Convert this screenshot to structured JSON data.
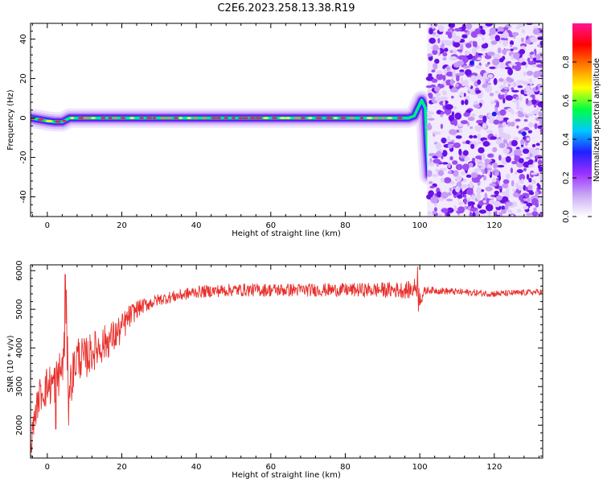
{
  "title": "C2E6.2023.258.13.38.R19",
  "chart_data": [
    {
      "type": "heatmap",
      "xlabel": "Height of straight line (km)",
      "ylabel": "Frequency (Hz)",
      "xlim": [
        -4.5,
        133
      ],
      "ylim": [
        -50,
        48
      ],
      "xticks": [
        0,
        20,
        40,
        60,
        80,
        100,
        120
      ],
      "yticks": [
        -40,
        -20,
        0,
        20,
        40
      ],
      "ridge": {
        "x": [
          -4.5,
          0,
          2,
          4,
          6,
          10,
          20,
          40,
          60,
          80,
          95,
          97,
          98.5,
          99.5,
          100.5,
          101.5,
          102,
          102.5
        ],
        "y": [
          0,
          -1.5,
          -2,
          -2,
          0,
          0,
          0,
          0,
          0,
          0,
          0,
          0,
          1,
          5,
          9,
          5,
          -15,
          -29
        ]
      },
      "noise_start_km": 103.5,
      "grid": false,
      "colorbar": {
        "label": "Normalized spectral amplitude",
        "range": [
          0.0,
          1.0
        ],
        "ticks": [
          "0.0",
          "0.2",
          "0.4",
          "0.6",
          "0.8"
        ],
        "colors": [
          "#ffffff",
          "#c9a8f5",
          "#9b30ff",
          "#2020ff",
          "#00c8ff",
          "#00ff40",
          "#ffff00",
          "#ff8000",
          "#ff0000",
          "#ff1493"
        ]
      }
    },
    {
      "type": "line",
      "xlabel": "Height of straight line (km)",
      "ylabel": "SNR (10 * v/v)",
      "xlim": [
        -4.5,
        133
      ],
      "ylim": [
        1150,
        6150
      ],
      "xticks": [
        0,
        20,
        40,
        60,
        80,
        100,
        120
      ],
      "yticks": [
        2000,
        3000,
        4000,
        5000,
        6000
      ],
      "grid": false,
      "line_color": "#e8302c",
      "envelope": {
        "x": [
          -4.5,
          -3.5,
          -2,
          0,
          2,
          4,
          5,
          6,
          8,
          10,
          12,
          15,
          18,
          20,
          22,
          24,
          26,
          30,
          35,
          40,
          50,
          60,
          70,
          80,
          90,
          95,
          98,
          99,
          100,
          102,
          110,
          120,
          133
        ],
        "y": [
          1400,
          2200,
          2800,
          3000,
          3100,
          3500,
          4300,
          3000,
          3800,
          3700,
          3900,
          4100,
          4300,
          4500,
          4800,
          5000,
          5100,
          5250,
          5350,
          5450,
          5500,
          5500,
          5500,
          5500,
          5500,
          5500,
          5500,
          5600,
          5300,
          5500,
          5450,
          5400,
          5450
        ]
      },
      "noise_amp": {
        "x": [
          -4.5,
          0,
          5,
          10,
          20,
          25,
          30,
          60,
          80,
          95,
          100,
          102,
          133
        ],
        "y": [
          300,
          550,
          600,
          550,
          400,
          200,
          150,
          170,
          170,
          210,
          250,
          90,
          80
        ]
      },
      "spikes": [
        {
          "x": 4.8,
          "y": 5900
        },
        {
          "x": 5.1,
          "y": 5500
        },
        {
          "x": 5.7,
          "y": 2000
        },
        {
          "x": 2.3,
          "y": 1900
        },
        {
          "x": 99.4,
          "y": 6100
        },
        {
          "x": 99.7,
          "y": 4950
        }
      ]
    }
  ]
}
